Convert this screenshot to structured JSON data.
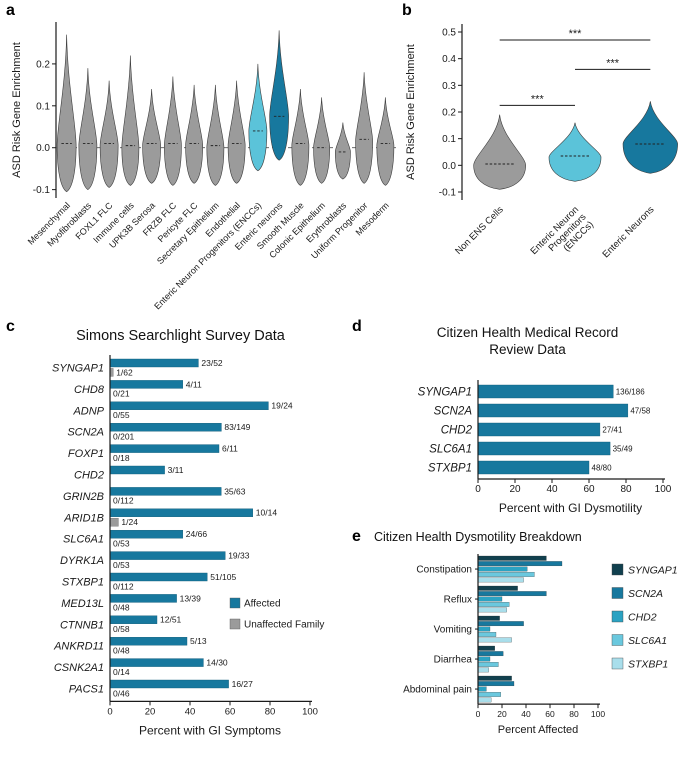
{
  "figure": {
    "panel_labels": {
      "a": "a",
      "b": "b",
      "c": "c",
      "d": "d",
      "e": "e"
    }
  },
  "colors": {
    "teal": "#17789E",
    "lightblue": "#5BC3D9",
    "gray": "#9B9B9B",
    "axis": "#1a1a1a"
  },
  "chart_data": [
    {
      "id": "a",
      "type": "violin",
      "title": "",
      "ylabel": "ASD Risk Gene Enrichment",
      "ylim": [
        -0.12,
        0.3
      ],
      "yticks": [
        0.2,
        0.1,
        0.0,
        -0.1
      ],
      "zero_line": 0.0,
      "violins": [
        {
          "label": "Mesenchymal",
          "min": -0.105,
          "max": 0.27,
          "peak": 0.005,
          "median": 0.01,
          "w": 1.0,
          "color": "gray"
        },
        {
          "label": "Myofibroblasts",
          "min": -0.1,
          "max": 0.19,
          "peak": 0.005,
          "median": 0.01,
          "w": 0.95,
          "color": "gray"
        },
        {
          "label": "FOXL1 FLC",
          "min": -0.095,
          "max": 0.16,
          "peak": 0.005,
          "median": 0.01,
          "w": 0.95,
          "color": "gray"
        },
        {
          "label": "Immune cells",
          "min": -0.09,
          "max": 0.22,
          "peak": 0.0,
          "median": 0.005,
          "w": 0.9,
          "color": "gray"
        },
        {
          "label": "UPK3B Serosa",
          "min": -0.085,
          "max": 0.14,
          "peak": 0.005,
          "median": 0.01,
          "w": 0.95,
          "color": "gray"
        },
        {
          "label": "FRZB FLC",
          "min": -0.09,
          "max": 0.17,
          "peak": 0.005,
          "median": 0.01,
          "w": 0.9,
          "color": "gray"
        },
        {
          "label": "Pericyte FLC",
          "min": -0.085,
          "max": 0.15,
          "peak": 0.005,
          "median": 0.01,
          "w": 0.9,
          "color": "gray"
        },
        {
          "label": "Secretary Epithelium",
          "min": -0.09,
          "max": 0.15,
          "peak": 0.0,
          "median": 0.005,
          "w": 0.9,
          "color": "gray"
        },
        {
          "label": "Endothelial",
          "min": -0.085,
          "max": 0.16,
          "peak": 0.005,
          "median": 0.01,
          "w": 0.9,
          "color": "gray"
        },
        {
          "label": "Enteric Neuron Progenitors (ENCCs)",
          "min": -0.055,
          "max": 0.2,
          "peak": 0.04,
          "median": 0.04,
          "w": 0.95,
          "color": "lightblue"
        },
        {
          "label": "Enteric neurons",
          "min": -0.03,
          "max": 0.28,
          "peak": 0.075,
          "median": 0.075,
          "w": 1.0,
          "color": "teal"
        },
        {
          "label": "Smooth Muscle",
          "min": -0.09,
          "max": 0.14,
          "peak": 0.005,
          "median": 0.01,
          "w": 0.9,
          "color": "gray"
        },
        {
          "label": "Colonic Epithelium",
          "min": -0.085,
          "max": 0.12,
          "peak": 0.0,
          "median": 0.0,
          "w": 0.85,
          "color": "gray"
        },
        {
          "label": "Erythroblasts",
          "min": -0.075,
          "max": 0.06,
          "peak": -0.01,
          "median": -0.01,
          "w": 0.8,
          "color": "gray"
        },
        {
          "label": "Uniform Progenitor",
          "min": -0.085,
          "max": 0.18,
          "peak": 0.015,
          "median": 0.02,
          "w": 0.9,
          "color": "gray"
        },
        {
          "label": "Mesoderm",
          "min": -0.09,
          "max": 0.12,
          "peak": 0.005,
          "median": 0.01,
          "w": 0.9,
          "color": "gray"
        }
      ]
    },
    {
      "id": "b",
      "type": "violin",
      "title": "",
      "ylabel": "ASD Risk Gene Enrichment",
      "ylim": [
        -0.13,
        0.53
      ],
      "yticks": [
        0.5,
        0.4,
        0.3,
        0.2,
        0.1,
        0.0,
        -0.1
      ],
      "violins": [
        {
          "label": "Non ENS Cells",
          "min": -0.09,
          "max": 0.19,
          "peak": 0.0,
          "median": 0.005,
          "w": 1.0,
          "color": "gray"
        },
        {
          "label": "Enteric Neuron\nProgenitors\n(ENCCs)",
          "min": -0.06,
          "max": 0.16,
          "peak": 0.03,
          "median": 0.035,
          "w": 1.0,
          "color": "lightblue"
        },
        {
          "label": "Enteric Neurons",
          "min": -0.03,
          "max": 0.24,
          "peak": 0.08,
          "median": 0.08,
          "w": 1.05,
          "color": "teal"
        }
      ],
      "significance": [
        {
          "from": 0,
          "to": 1,
          "y": 0.225,
          "label": "***"
        },
        {
          "from": 1,
          "to": 2,
          "y": 0.36,
          "label": "***"
        },
        {
          "from": 0,
          "to": 2,
          "y": 0.47,
          "label": "***"
        }
      ]
    },
    {
      "id": "c",
      "type": "bar",
      "title": "Simons Searchlight Survey Data",
      "xlabel": "Percent with GI Symptoms",
      "xlim": [
        0,
        100
      ],
      "xticks": [
        0,
        20,
        40,
        60,
        80,
        100
      ],
      "series_legend": [
        {
          "label": "Affected",
          "color": "teal"
        },
        {
          "label": "Unaffected Family",
          "color": "gray"
        }
      ],
      "rows": [
        {
          "gene": "SYNGAP1",
          "affected_label": "23/52",
          "affected_pct": 44.2,
          "unaffected_label": "1/62",
          "unaffected_pct": 1.6
        },
        {
          "gene": "CHD8",
          "affected_label": "4/11",
          "affected_pct": 36.4,
          "unaffected_label": "0/21",
          "unaffected_pct": 0
        },
        {
          "gene": "ADNP",
          "affected_label": "19/24",
          "affected_pct": 79.2,
          "unaffected_label": "0/55",
          "unaffected_pct": 0
        },
        {
          "gene": "SCN2A",
          "affected_label": "83/149",
          "affected_pct": 55.7,
          "unaffected_label": "0/201",
          "unaffected_pct": 0
        },
        {
          "gene": "FOXP1",
          "affected_label": "6/11",
          "affected_pct": 54.5,
          "unaffected_label": "0/18",
          "unaffected_pct": 0
        },
        {
          "gene": "CHD2",
          "affected_label": "3/11",
          "affected_pct": 27.3,
          "unaffected_label": "",
          "unaffected_pct": 0
        },
        {
          "gene": "GRIN2B",
          "affected_label": "35/63",
          "affected_pct": 55.6,
          "unaffected_label": "0/112",
          "unaffected_pct": 0
        },
        {
          "gene": "ARID1B",
          "affected_label": "10/14",
          "affected_pct": 71.4,
          "unaffected_label": "1/24",
          "unaffected_pct": 4.2
        },
        {
          "gene": "SLC6A1",
          "affected_label": "24/66",
          "affected_pct": 36.4,
          "unaffected_label": "0/53",
          "unaffected_pct": 0
        },
        {
          "gene": "DYRK1A",
          "affected_label": "19/33",
          "affected_pct": 57.6,
          "unaffected_label": "0/53",
          "unaffected_pct": 0
        },
        {
          "gene": "STXBP1",
          "affected_label": "51/105",
          "affected_pct": 48.6,
          "unaffected_label": "0/112",
          "unaffected_pct": 0
        },
        {
          "gene": "MED13L",
          "affected_label": "13/39",
          "affected_pct": 33.3,
          "unaffected_label": "0/48",
          "unaffected_pct": 0
        },
        {
          "gene": "CTNNB1",
          "affected_label": "12/51",
          "affected_pct": 23.5,
          "unaffected_label": "0/58",
          "unaffected_pct": 0
        },
        {
          "gene": "ANKRD11",
          "affected_label": "5/13",
          "affected_pct": 38.5,
          "unaffected_label": "0/48",
          "unaffected_pct": 0
        },
        {
          "gene": "CSNK2A1",
          "affected_label": "14/30",
          "affected_pct": 46.7,
          "unaffected_label": "0/14",
          "unaffected_pct": 0
        },
        {
          "gene": "PACS1",
          "affected_label": "16/27",
          "affected_pct": 59.3,
          "unaffected_label": "0/46",
          "unaffected_pct": 0
        }
      ]
    },
    {
      "id": "d",
      "type": "bar",
      "title": "Citizen Health Medical Record Review Data",
      "title_lines": [
        "Citizen Health Medical Record",
        "Review Data"
      ],
      "xlabel": "Percent with GI Dysmotility",
      "xlim": [
        0,
        100
      ],
      "xticks": [
        0,
        20,
        40,
        60,
        80,
        100
      ],
      "rows": [
        {
          "gene": "SYNGAP1",
          "label": "136/186",
          "pct": 73.1
        },
        {
          "gene": "SCN2A",
          "label": "47/58",
          "pct": 81.0
        },
        {
          "gene": "CHD2",
          "label": "27/41",
          "pct": 65.9
        },
        {
          "gene": "SLC6A1",
          "label": "35/49",
          "pct": 71.4
        },
        {
          "gene": "STXBP1",
          "label": "48/80",
          "pct": 60.0
        }
      ]
    },
    {
      "id": "e",
      "type": "grouped_bar",
      "title": "Citizen Health Dysmotility Breakdown",
      "xlabel": "Percent Affected",
      "xlim": [
        0,
        100
      ],
      "xticks": [
        0,
        20,
        40,
        60,
        80,
        100
      ],
      "categories": [
        "Constipation",
        "Reflux",
        "Vomiting",
        "Diarrhea",
        "Abdominal pain"
      ],
      "genes": [
        "SYNGAP1",
        "SCN2A",
        "CHD2",
        "SLC6A1",
        "STXBP1"
      ],
      "gene_colors": [
        "#11404E",
        "#17789E",
        "#2BA2C2",
        "#6AC8DE",
        "#A9DEEB"
      ],
      "series": [
        {
          "name": "SYNGAP1",
          "values": [
            57,
            33,
            18,
            14,
            28
          ]
        },
        {
          "name": "SCN2A",
          "values": [
            70,
            57,
            38,
            21,
            30
          ]
        },
        {
          "name": "CHD2",
          "values": [
            41,
            20,
            10,
            10,
            7
          ]
        },
        {
          "name": "SLC6A1",
          "values": [
            47,
            26,
            15,
            17,
            19
          ]
        },
        {
          "name": "STXBP1",
          "values": [
            38,
            24,
            28,
            9,
            11
          ]
        }
      ]
    }
  ]
}
